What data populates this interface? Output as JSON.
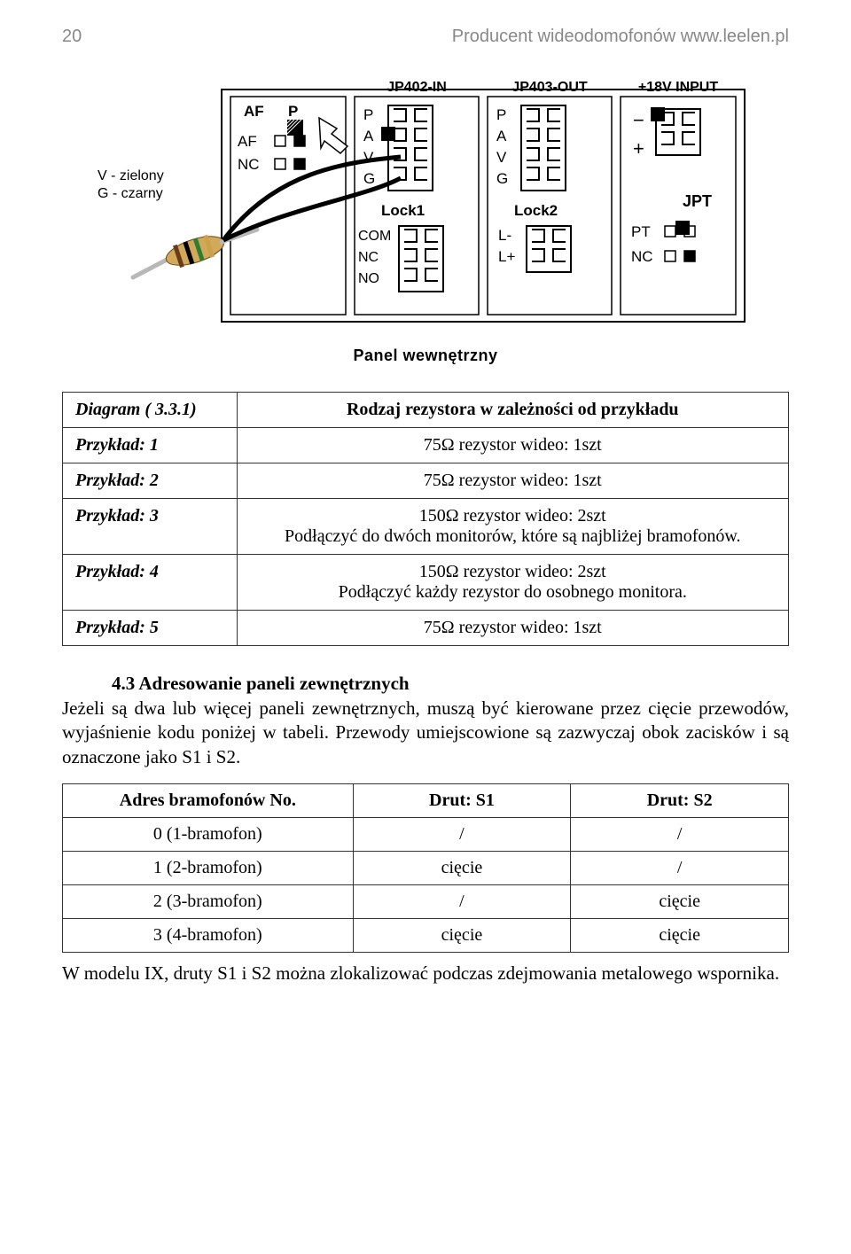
{
  "header": {
    "page_no": "20",
    "site": "Producent wideodomofonów www.leelen.pl"
  },
  "diagram": {
    "caption": "Panel wewnętrzny",
    "v_legend": "V - zielony",
    "g_legend": "G - czarny",
    "box_stroke": "#000000",
    "box_fill": "#ffffff",
    "pad_fill": "#ffffff",
    "pad_stroke": "#000000",
    "black_sq": "#000000",
    "outline_w": 2,
    "cols": [
      {
        "header": "AF P",
        "rows": [
          [
            "AF"
          ],
          [
            "NC"
          ]
        ]
      },
      {
        "header": "JP402-IN",
        "groups": [
          {
            "label": "",
            "pins": [
              "P",
              "A",
              "V",
              "G"
            ]
          },
          {
            "label": "Lock1",
            "pins": [
              "COM",
              "NC",
              "NO"
            ]
          }
        ]
      },
      {
        "header": "JP403-OUT",
        "groups": [
          {
            "label": "",
            "pins": [
              "P",
              "A",
              "V",
              "G"
            ]
          },
          {
            "label": "Lock2",
            "pins": [
              "L-",
              "L+"
            ]
          }
        ]
      },
      {
        "header": "+18V INPUT",
        "groups": [
          {
            "label": "",
            "pins": [
              "-",
              "+"
            ]
          },
          {
            "label": "JPT",
            "pins": [
              "PT",
              "NC"
            ]
          }
        ]
      }
    ],
    "resistor": {
      "body_color": "#d2a85a",
      "bands": [
        "#6a3b1a",
        "#000000",
        "#2e7d32",
        "#c9a24a"
      ],
      "lead_color": "#b8b8b8"
    }
  },
  "table1": {
    "rows": [
      [
        "Diagram ( 3.3.1)",
        "Rodzaj rezystora w zależności od przykładu"
      ],
      [
        "Przykład: 1",
        "75Ω rezystor wideo: 1szt"
      ],
      [
        "Przykład: 2",
        "75Ω rezystor wideo: 1szt"
      ],
      [
        "Przykład: 3",
        "150Ω rezystor wideo: 2szt\nPodłączyć do dwóch monitorów, które są najbliżej bramofonów."
      ],
      [
        "Przykład: 4",
        "150Ω rezystor wideo: 2szt\nPodłączyć każdy rezystor do osobnego monitora."
      ],
      [
        "Przykład: 5",
        "75Ω rezystor wideo: 1szt"
      ]
    ]
  },
  "section": {
    "title": "4.3 Adresowanie paneli zewnętrznych",
    "para": "Jeżeli są dwa lub więcej paneli zewnętrznych, muszą być kierowane przez cięcie  przewodów, wyjaśnienie kodu poniżej w tabeli. Przewody umiejscowione są zazwyczaj obok zacisków i są oznaczone jako S1 i S2."
  },
  "table2": {
    "header": [
      "Adres bramofonów No.",
      "Drut: S1",
      "Drut: S2"
    ],
    "rows": [
      [
        "0 (1-bramofon)",
        "/",
        "/"
      ],
      [
        "1 (2-bramofon)",
        "cięcie",
        "/"
      ],
      [
        "2 (3-bramofon)",
        "/",
        "cięcie"
      ],
      [
        "3 (4-bramofon)",
        "cięcie",
        "cięcie"
      ]
    ]
  },
  "footnote": "W modelu IX, druty S1 i S2 można zlokalizować podczas zdejmowania metalowego wspornika."
}
